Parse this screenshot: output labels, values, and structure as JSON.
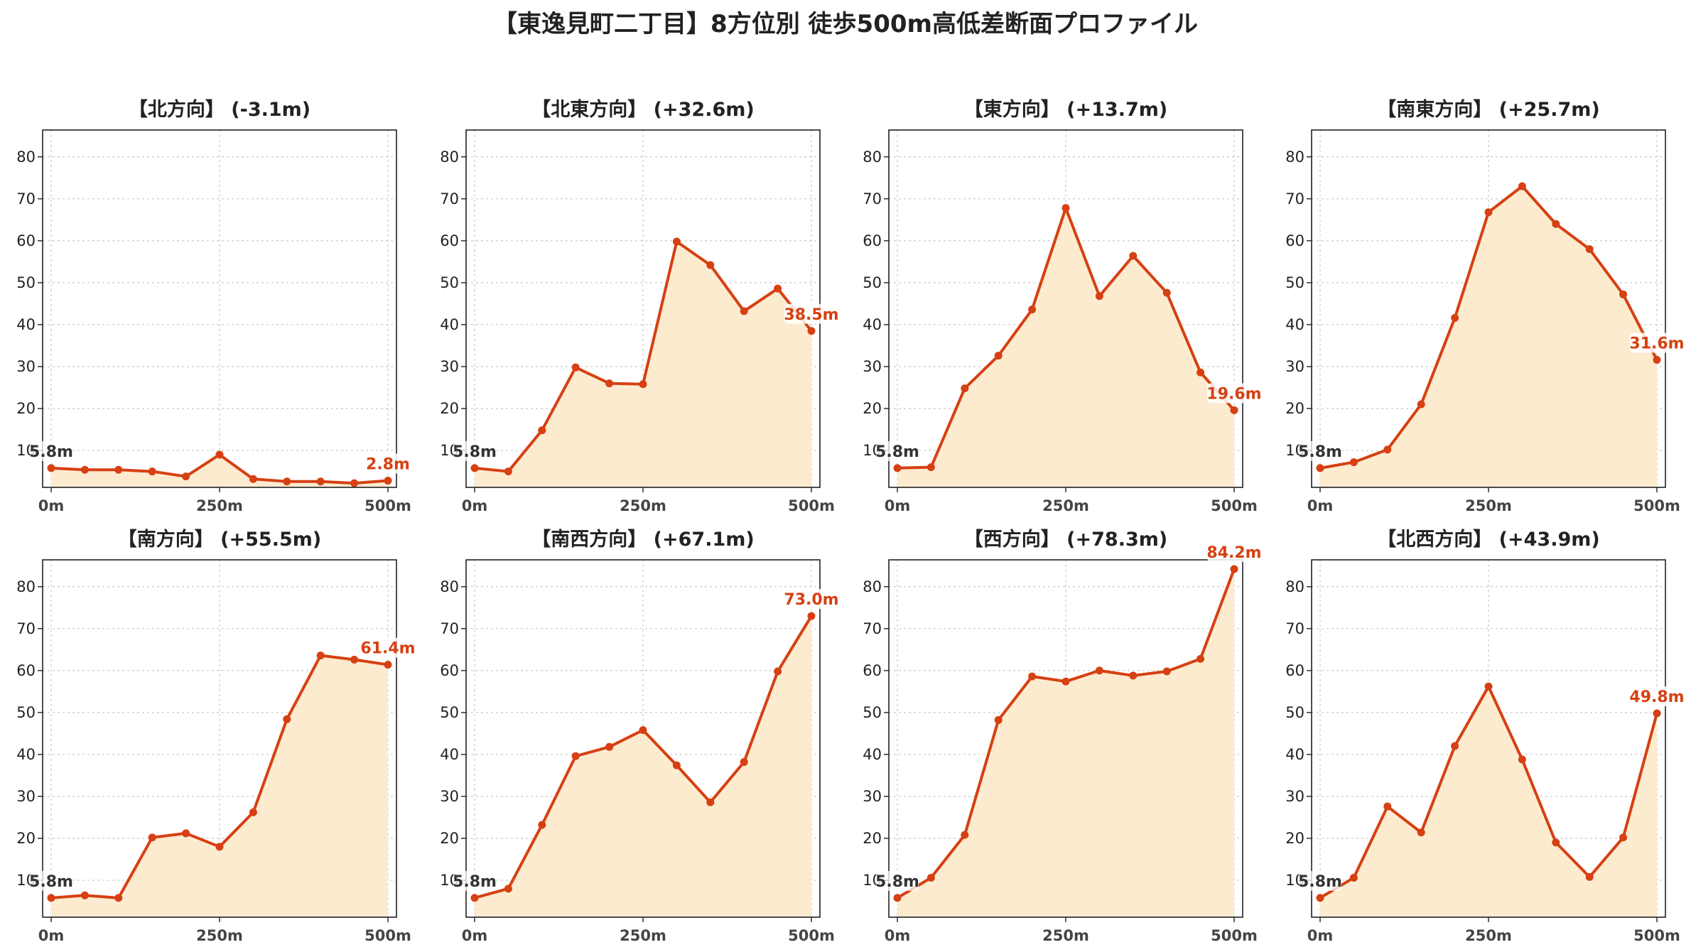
{
  "title": "【東逸見町二丁目】8方位別 徒歩500m高低差断面プロファイル",
  "colors": {
    "line": "#d64012",
    "fill": "#fdebd0",
    "grid": "#c8c8c8",
    "start_label": "#333333",
    "end_label": "#d64012"
  },
  "chart_data": [
    {
      "type": "area",
      "title": "【北方向】 (-3.1m)",
      "xlabel": "",
      "ylabel": "",
      "x": [
        0,
        50,
        100,
        150,
        200,
        250,
        300,
        350,
        400,
        450,
        500
      ],
      "x_tick_labels": [
        "0m",
        "250m",
        "500m"
      ],
      "y_ticks": [
        "10",
        "20",
        "30",
        "40",
        "50",
        "60",
        "70",
        "80"
      ],
      "ylim": [
        1.2,
        86.4
      ],
      "grid": true,
      "values": [
        5.8,
        5.4,
        5.4,
        5.0,
        3.8,
        9.0,
        3.2,
        2.6,
        2.6,
        2.2,
        2.8
      ],
      "start_label": "5.8m",
      "end_label": "2.8m"
    },
    {
      "type": "area",
      "title": "【北東方向】 (+32.6m)",
      "xlabel": "",
      "ylabel": "",
      "x": [
        0,
        50,
        100,
        150,
        200,
        250,
        300,
        350,
        400,
        450,
        500
      ],
      "x_tick_labels": [
        "0m",
        "250m",
        "500m"
      ],
      "y_ticks": [
        "10",
        "20",
        "30",
        "40",
        "50",
        "60",
        "70",
        "80"
      ],
      "ylim": [
        1.2,
        86.4
      ],
      "grid": true,
      "values": [
        5.8,
        5.0,
        14.8,
        29.8,
        26.0,
        25.8,
        59.8,
        54.2,
        43.2,
        48.6,
        38.5
      ],
      "start_label": "5.8m",
      "end_label": "38.5m"
    },
    {
      "type": "area",
      "title": "【東方向】 (+13.7m)",
      "xlabel": "",
      "ylabel": "",
      "x": [
        0,
        50,
        100,
        150,
        200,
        250,
        300,
        350,
        400,
        450,
        500
      ],
      "x_tick_labels": [
        "0m",
        "250m",
        "500m"
      ],
      "y_ticks": [
        "10",
        "20",
        "30",
        "40",
        "50",
        "60",
        "70",
        "80"
      ],
      "ylim": [
        1.2,
        86.4
      ],
      "grid": true,
      "values": [
        5.8,
        6.0,
        24.8,
        32.6,
        43.6,
        67.8,
        46.8,
        56.4,
        47.6,
        28.6,
        19.6
      ],
      "start_label": "5.8m",
      "end_label": "19.6m"
    },
    {
      "type": "area",
      "title": "【南東方向】 (+25.7m)",
      "xlabel": "",
      "ylabel": "",
      "x": [
        0,
        50,
        100,
        150,
        200,
        250,
        300,
        350,
        400,
        450,
        500
      ],
      "x_tick_labels": [
        "0m",
        "250m",
        "500m"
      ],
      "y_ticks": [
        "10",
        "20",
        "30",
        "40",
        "50",
        "60",
        "70",
        "80"
      ],
      "ylim": [
        1.2,
        86.4
      ],
      "grid": true,
      "values": [
        5.8,
        7.2,
        10.2,
        21.0,
        41.6,
        66.8,
        73.0,
        64.0,
        58.0,
        47.2,
        31.6
      ],
      "start_label": "5.8m",
      "end_label": "31.6m"
    },
    {
      "type": "area",
      "title": "【南方向】 (+55.5m)",
      "xlabel": "",
      "ylabel": "",
      "x": [
        0,
        50,
        100,
        150,
        200,
        250,
        300,
        350,
        400,
        450,
        500
      ],
      "x_tick_labels": [
        "0m",
        "250m",
        "500m"
      ],
      "y_ticks": [
        "10",
        "20",
        "30",
        "40",
        "50",
        "60",
        "70",
        "80"
      ],
      "ylim": [
        1.2,
        86.4
      ],
      "grid": true,
      "values": [
        5.8,
        6.4,
        5.8,
        20.2,
        21.2,
        18.0,
        26.2,
        48.4,
        63.6,
        62.6,
        61.4
      ],
      "start_label": "5.8m",
      "end_label": "61.4m"
    },
    {
      "type": "area",
      "title": "【南西方向】 (+67.1m)",
      "xlabel": "",
      "ylabel": "",
      "x": [
        0,
        50,
        100,
        150,
        200,
        250,
        300,
        350,
        400,
        450,
        500
      ],
      "x_tick_labels": [
        "0m",
        "250m",
        "500m"
      ],
      "y_ticks": [
        "10",
        "20",
        "30",
        "40",
        "50",
        "60",
        "70",
        "80"
      ],
      "ylim": [
        1.2,
        86.4
      ],
      "grid": true,
      "values": [
        5.8,
        8.0,
        23.2,
        39.6,
        41.8,
        45.8,
        37.4,
        28.6,
        38.2,
        59.8,
        73.0
      ],
      "start_label": "5.8m",
      "end_label": "73.0m"
    },
    {
      "type": "area",
      "title": "【西方向】 (+78.3m)",
      "xlabel": "",
      "ylabel": "",
      "x": [
        0,
        50,
        100,
        150,
        200,
        250,
        300,
        350,
        400,
        450,
        500
      ],
      "x_tick_labels": [
        "0m",
        "250m",
        "500m"
      ],
      "y_ticks": [
        "10",
        "20",
        "30",
        "40",
        "50",
        "60",
        "70",
        "80"
      ],
      "ylim": [
        1.2,
        86.4
      ],
      "grid": true,
      "values": [
        5.8,
        10.6,
        20.8,
        48.2,
        58.6,
        57.4,
        60.0,
        58.8,
        59.8,
        62.8,
        84.2
      ],
      "start_label": "5.8m",
      "end_label": "84.2m"
    },
    {
      "type": "area",
      "title": "【北西方向】 (+43.9m)",
      "xlabel": "",
      "ylabel": "",
      "x": [
        0,
        50,
        100,
        150,
        200,
        250,
        300,
        350,
        400,
        450,
        500
      ],
      "x_tick_labels": [
        "0m",
        "250m",
        "500m"
      ],
      "y_ticks": [
        "10",
        "20",
        "30",
        "40",
        "50",
        "60",
        "70",
        "80"
      ],
      "ylim": [
        1.2,
        86.4
      ],
      "grid": true,
      "values": [
        5.8,
        10.6,
        27.6,
        21.4,
        42.0,
        56.2,
        38.8,
        19.0,
        10.8,
        20.2,
        49.8
      ],
      "start_label": "5.8m",
      "end_label": "49.8m"
    }
  ]
}
